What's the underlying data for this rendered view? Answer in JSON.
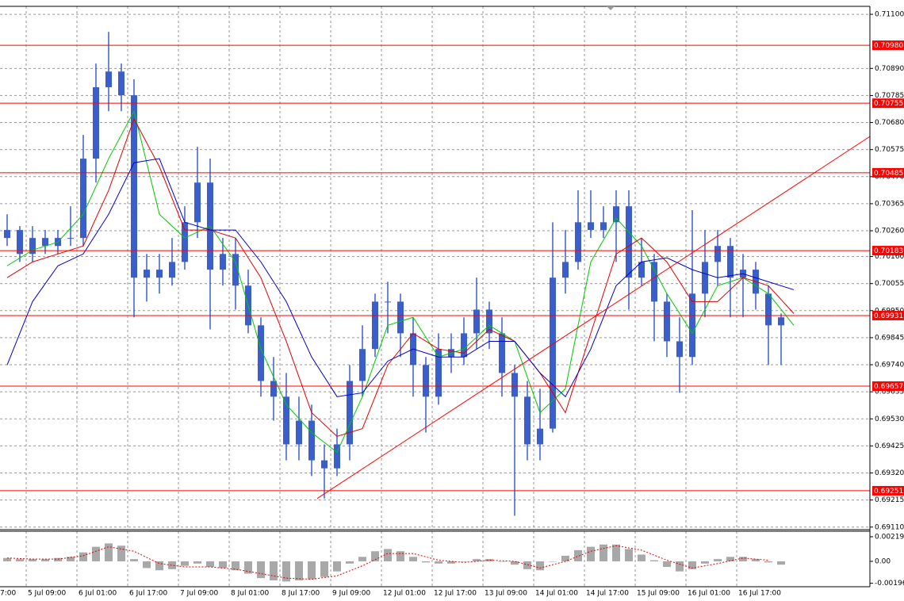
{
  "chart_data": [
    {
      "type": "candlestick",
      "color": "#3a5fcd",
      "grid": true,
      "xlim": [
        -0.5625,
        68
      ],
      "xticks": [
        {
          "value": -2.5,
          "label": "7:00"
        },
        {
          "value": 1.5,
          "label": "5 Jul 09:00"
        },
        {
          "value": 5.5,
          "label": "6 Jul 01:00"
        },
        {
          "value": 9.5,
          "label": "6 Jul 17:00"
        },
        {
          "value": 13.5,
          "label": "7 Jul 09:00"
        },
        {
          "value": 17.5,
          "label": "8 Jul 01:00"
        },
        {
          "value": 21.5,
          "label": "8 Jul 17:00"
        },
        {
          "value": 25.5,
          "label": "9 Jul 09:00"
        },
        {
          "value": 29.5,
          "label": "12 Jul 01:00"
        },
        {
          "value": 33.5,
          "label": "12 Jul 17:00"
        },
        {
          "value": 37.5,
          "label": "13 Jul 09:00"
        },
        {
          "value": 41.5,
          "label": "14 Jul 01:00"
        },
        {
          "value": 45.5,
          "label": "14 Jul 17:00"
        },
        {
          "value": 49.5,
          "label": "15 Jul 09:00"
        },
        {
          "value": 53.5,
          "label": "16 Jul 01:00"
        },
        {
          "value": 57.5,
          "label": "16 Jul 17:00"
        }
      ],
      "ylim": [
        0.691,
        0.71131
      ],
      "yticks": [
        {
          "value": 0.711,
          "label": "0.71100"
        },
        {
          "value": 0.7089,
          "label": "0.70890"
        },
        0.70785,
        {
          "value": 0.7068,
          "label": "0.70680"
        },
        0.70575,
        {
          "value": 0.7047,
          "label": "0.70470"
        },
        0.70365,
        {
          "value": 0.7026,
          "label": "0.70260"
        },
        {
          "value": 0.7016,
          "label": "0.70160"
        },
        0.70055,
        {
          "value": 0.6995,
          "label": "0.69950"
        },
        0.69845,
        {
          "value": 0.6974,
          "label": "0.69740"
        },
        0.69635,
        {
          "value": 0.6953,
          "label": "0.69530"
        },
        0.69425,
        {
          "value": 0.6932,
          "label": "0.69320"
        },
        0.69215,
        {
          "value": 0.6911,
          "label": "0.69110"
        }
      ],
      "open": [
        0.70232,
        0.70263,
        0.7017,
        0.70232,
        0.70201,
        0.70232,
        0.70232,
        0.7054,
        0.70817,
        0.70878,
        0.70786,
        0.70078,
        0.70109,
        0.70078,
        0.70139,
        0.70293,
        0.70447,
        0.70109,
        0.7017,
        0.70047,
        0.69893,
        0.69677,
        0.69616,
        0.69431,
        0.69523,
        0.69369,
        0.69338,
        0.69431,
        0.69677,
        0.69801,
        0.69985,
        0.69985,
        0.69862,
        0.69739,
        0.69616,
        0.69801,
        0.6977,
        0.69862,
        0.69954,
        0.69862,
        0.69708,
        0.69616,
        0.69431,
        0.69492,
        0.70078,
        0.70139,
        0.70293,
        0.70263,
        0.70293,
        0.70355,
        0.70078,
        0.70139,
        0.69985,
        0.69831,
        0.6977,
        0.70016,
        0.70139,
        0.70201,
        0.70078,
        0.70109,
        0.70016,
        0.69893
      ],
      "high": [
        0.70324,
        0.70278,
        0.70278,
        0.70263,
        0.70263,
        0.70355,
        0.70632,
        0.70909,
        0.71032,
        0.70909,
        0.70848,
        0.7017,
        0.7017,
        0.70232,
        0.70355,
        0.70586,
        0.7054,
        0.70232,
        0.70232,
        0.70109,
        0.69924,
        0.6977,
        0.69708,
        0.69616,
        0.69585,
        0.69431,
        0.69492,
        0.69739,
        0.69893,
        0.70016,
        0.70062,
        0.70016,
        0.69924,
        0.6977,
        0.69862,
        0.69862,
        0.69924,
        0.70078,
        0.69985,
        0.69924,
        0.69739,
        0.69677,
        0.69647,
        0.70293,
        0.70263,
        0.70417,
        0.70417,
        0.70355,
        0.70417,
        0.70417,
        0.70232,
        0.7017,
        0.70016,
        0.69924,
        0.7034,
        0.70263,
        0.70263,
        0.70232,
        0.7017,
        0.70139,
        0.70047,
        0.69939
      ],
      "low": [
        0.70201,
        0.70139,
        0.70139,
        0.7017,
        0.7017,
        0.70201,
        0.70201,
        0.70447,
        0.70724,
        0.70724,
        0.69924,
        0.69985,
        0.70016,
        0.70047,
        0.70109,
        0.70232,
        0.69877,
        0.70047,
        0.69954,
        0.69862,
        0.69616,
        0.69523,
        0.69369,
        0.69369,
        0.69308,
        0.69221,
        0.69308,
        0.69369,
        0.69616,
        0.6977,
        0.69862,
        0.6977,
        0.69616,
        0.69477,
        0.69585,
        0.69708,
        0.69739,
        0.69801,
        0.69801,
        0.69616,
        0.69154,
        0.69369,
        0.69369,
        0.69477,
        0.70016,
        0.70109,
        0.70232,
        0.70232,
        0.70139,
        0.69954,
        0.70047,
        0.69831,
        0.6977,
        0.69631,
        0.69739,
        0.69924,
        0.70047,
        0.69924,
        0.69924,
        0.69954,
        0.69739,
        0.69739
      ],
      "close": [
        0.70263,
        0.7017,
        0.70232,
        0.70201,
        0.70232,
        0.70232,
        0.7054,
        0.70817,
        0.70878,
        0.70786,
        0.70078,
        0.70109,
        0.70078,
        0.70139,
        0.70293,
        0.70447,
        0.70109,
        0.7017,
        0.70047,
        0.69893,
        0.69677,
        0.69616,
        0.69431,
        0.69523,
        0.69369,
        0.69338,
        0.69431,
        0.69677,
        0.69801,
        0.69985,
        0.69985,
        0.69862,
        0.69739,
        0.69616,
        0.69801,
        0.6977,
        0.69862,
        0.69954,
        0.69862,
        0.69708,
        0.69616,
        0.69431,
        0.69492,
        0.70078,
        0.70139,
        0.70293,
        0.70263,
        0.70293,
        0.70355,
        0.70078,
        0.70139,
        0.69985,
        0.69831,
        0.6977,
        0.70016,
        0.70139,
        0.70201,
        0.70078,
        0.70109,
        0.70016,
        0.69893,
        0.69924
      ],
      "lines": [
        {
          "color": "#00c800",
          "x": [
            0,
            2,
            4,
            6,
            8,
            10,
            12,
            14,
            16,
            18,
            20,
            22,
            24,
            26,
            28,
            30,
            32,
            34,
            36,
            38,
            40,
            42,
            44,
            46,
            48,
            50,
            52,
            54,
            56,
            58,
            60,
            62
          ],
          "values": [
            0.70124,
            0.70185,
            0.70216,
            0.70324,
            0.7054,
            0.70724,
            0.70324,
            0.70232,
            0.70278,
            0.70139,
            0.69801,
            0.69585,
            0.69477,
            0.694,
            0.69616,
            0.69893,
            0.69924,
            0.6977,
            0.69801,
            0.69893,
            0.69831,
            0.69554,
            0.69647,
            0.70139,
            0.70309,
            0.70201,
            0.70016,
            0.69862,
            0.70047,
            0.70078,
            0.70016,
            0.69893
          ]
        },
        {
          "color": "#e00000",
          "x": [
            0,
            2,
            4,
            6,
            8,
            10,
            12,
            14,
            16,
            18,
            20,
            22,
            24,
            26,
            28,
            30,
            32,
            34,
            36,
            38,
            40,
            42,
            44,
            46,
            48,
            50,
            52,
            54,
            56,
            58,
            60,
            62
          ],
          "values": [
            0.70078,
            0.70139,
            0.7017,
            0.70201,
            0.70417,
            0.70694,
            0.70509,
            0.70263,
            0.70263,
            0.70232,
            0.70078,
            0.69831,
            0.69554,
            0.69462,
            0.69492,
            0.69739,
            0.69862,
            0.69801,
            0.69785,
            0.69877,
            0.69831,
            0.69708,
            0.69554,
            0.69862,
            0.7017,
            0.70232,
            0.70139,
            0.69985,
            0.69985,
            0.70078,
            0.70047,
            0.69939
          ]
        },
        {
          "color": "#0000c8",
          "x": [
            0,
            2,
            4,
            6,
            8,
            10,
            12,
            14,
            16,
            18,
            20,
            22,
            24,
            26,
            28,
            30,
            32,
            34,
            36,
            38,
            40,
            42,
            44,
            46,
            48,
            50,
            52,
            54,
            56,
            58,
            60,
            62
          ],
          "values": [
            0.69739,
            0.69985,
            0.70124,
            0.7017,
            0.70324,
            0.70524,
            0.7054,
            0.70293,
            0.70263,
            0.70263,
            0.70139,
            0.69985,
            0.6977,
            0.69616,
            0.69631,
            0.69754,
            0.69801,
            0.6977,
            0.6977,
            0.69831,
            0.69831,
            0.69708,
            0.69616,
            0.69801,
            0.70047,
            0.70139,
            0.70155,
            0.70109,
            0.70078,
            0.70093,
            0.70062,
            0.70031
          ]
        }
      ],
      "levels": {
        "color": "#ff0000",
        "values": [
          0.7098,
          0.70755,
          0.70485,
          0.70183,
          0.69931,
          0.69657,
          0.69251
        ],
        "value_labels": [
          "0.70980",
          "0.70755",
          "0.70485",
          "0.70183",
          "0.69931",
          "0.69657",
          "0.69251"
        ]
      },
      "trendline": {
        "color": "#ff0000",
        "x": [
          24.44,
          68
        ],
        "values": [
          0.69221,
          0.70626
        ]
      }
    },
    {
      "type": "bar",
      "color": "#a8a8a8",
      "xlim": [
        -0.5625,
        68
      ],
      "ylim": [
        -0.00227,
        0.00269
      ],
      "yticks": [
        0.002196,
        {
          "value": 0,
          "label": "0.00"
        },
        -0.00196
      ],
      "x": [
        0,
        1,
        2,
        3,
        4,
        5,
        6,
        7,
        8,
        9,
        10,
        11,
        12,
        13,
        14,
        15,
        16,
        17,
        18,
        19,
        20,
        21,
        22,
        23,
        24,
        25,
        26,
        27,
        28,
        29,
        30,
        31,
        32,
        33,
        34,
        35,
        36,
        37,
        38,
        39,
        40,
        41,
        42,
        43,
        44,
        45,
        46,
        47,
        48,
        49,
        50,
        51,
        52,
        53,
        54,
        55,
        56,
        57,
        58,
        59,
        60,
        61
      ],
      "values": [
        0.0003,
        0.0002,
        0.0002,
        0.0002,
        0.0003,
        0.0004,
        0.0008,
        0.0013,
        0.0016,
        0.0014,
        0.0002,
        -0.0006,
        -0.0008,
        -0.0007,
        -0.0004,
        -0.0002,
        -0.0005,
        -0.0006,
        -0.0008,
        -0.0011,
        -0.0015,
        -0.0017,
        -0.0018,
        -0.0017,
        -0.0016,
        -0.0014,
        -0.0009,
        -0.0002,
        0.0004,
        0.0009,
        0.0011,
        0.0009,
        0.0004,
        -0.0001,
        -0.0002,
        -0.0002,
        0,
        0.0002,
        0.0002,
        0,
        -0.0003,
        -0.0007,
        -0.0008,
        0,
        0.0005,
        0.001,
        0.0013,
        0.0015,
        0.0015,
        0.0011,
        0.0006,
        0.0001,
        -0.0005,
        -0.0009,
        -0.0007,
        -0.0002,
        0.0002,
        0.0004,
        0.0004,
        0.0002,
        -0.0001,
        -0.0003
      ],
      "signal": {
        "color": "#e00000",
        "x": [
          0,
          2,
          4,
          6,
          8,
          10,
          12,
          14,
          16,
          18,
          20,
          22,
          24,
          26,
          28,
          30,
          32,
          34,
          36,
          38,
          40,
          42,
          44,
          46,
          48,
          50,
          52,
          54,
          56,
          58,
          60
        ],
        "values": [
          0.0003,
          0.0002,
          0.0002,
          0.0005,
          0.0013,
          0.0009,
          -0.0002,
          -0.0005,
          -0.0005,
          -0.0007,
          -0.0011,
          -0.0015,
          -0.0016,
          -0.0013,
          -0.0004,
          0.0007,
          0.0007,
          0.0001,
          -0.0001,
          0.0001,
          0,
          -0.0006,
          0,
          0.0009,
          0.0014,
          0.001,
          0.0001,
          -0.0006,
          -0.0002,
          0.0003,
          0.0001
        ]
      }
    }
  ]
}
